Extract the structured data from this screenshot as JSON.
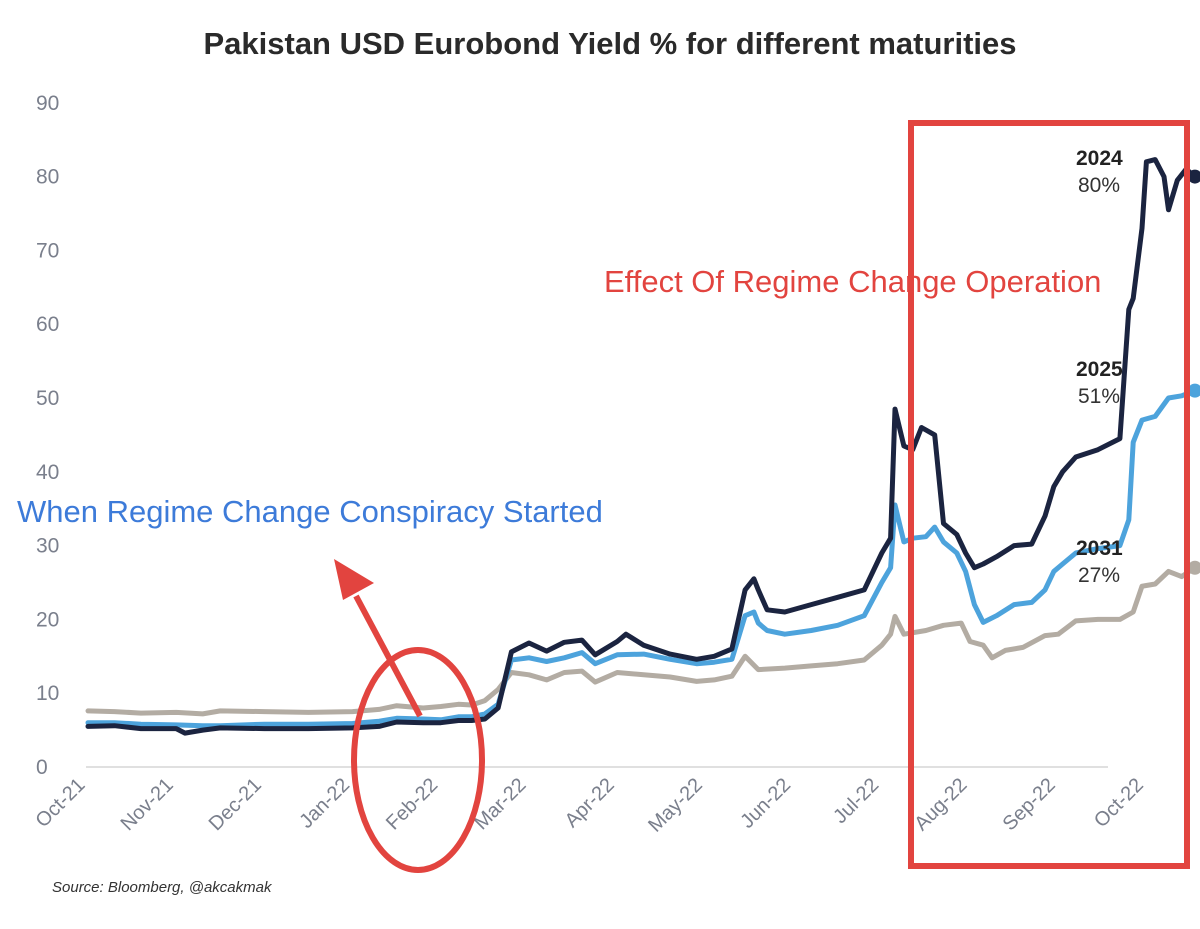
{
  "chart_data": {
    "type": "line",
    "title": "Pakistan USD Eurobond Yield % for different maturities",
    "source": "Source: Bloomberg, @akcakmak",
    "ylim": [
      0,
      90
    ],
    "yticks": [
      "0",
      "10",
      "20",
      "30",
      "40",
      "50",
      "60",
      "70",
      "80",
      "90"
    ],
    "xticks": [
      "Oct-21",
      "Nov-21",
      "Dec-21",
      "Jan-22",
      "Feb-22",
      "Mar-22",
      "Apr-22",
      "May-22",
      "Jun-22",
      "Jul-22",
      "Aug-22",
      "Sep-22",
      "Oct-22"
    ],
    "grid": false,
    "series": [
      {
        "name": "2031",
        "end_label": "27%",
        "color": "#b3aca3",
        "points": [
          [
            0,
            7.6
          ],
          [
            0.3,
            7.5
          ],
          [
            0.6,
            7.3
          ],
          [
            1.0,
            7.4
          ],
          [
            1.3,
            7.2
          ],
          [
            1.5,
            7.6
          ],
          [
            2.0,
            7.5
          ],
          [
            2.5,
            7.4
          ],
          [
            3.0,
            7.5
          ],
          [
            3.3,
            7.8
          ],
          [
            3.5,
            8.3
          ],
          [
            3.8,
            8.0
          ],
          [
            4.0,
            8.2
          ],
          [
            4.2,
            8.5
          ],
          [
            4.35,
            8.4
          ],
          [
            4.5,
            9.0
          ],
          [
            4.65,
            10.5
          ],
          [
            4.8,
            12.8
          ],
          [
            5.0,
            12.5
          ],
          [
            5.2,
            11.8
          ],
          [
            5.4,
            12.8
          ],
          [
            5.6,
            13.0
          ],
          [
            5.75,
            11.5
          ],
          [
            6.0,
            12.8
          ],
          [
            6.3,
            12.5
          ],
          [
            6.6,
            12.2
          ],
          [
            6.9,
            11.6
          ],
          [
            7.1,
            11.8
          ],
          [
            7.3,
            12.3
          ],
          [
            7.45,
            15.0
          ],
          [
            7.6,
            13.2
          ],
          [
            7.9,
            13.4
          ],
          [
            8.2,
            13.7
          ],
          [
            8.5,
            14.0
          ],
          [
            8.8,
            14.5
          ],
          [
            9.0,
            16.5
          ],
          [
            9.1,
            18.0
          ],
          [
            9.15,
            20.4
          ],
          [
            9.25,
            18.0
          ],
          [
            9.5,
            18.5
          ],
          [
            9.7,
            19.2
          ],
          [
            9.9,
            19.5
          ],
          [
            10.0,
            17.0
          ],
          [
            10.15,
            16.5
          ],
          [
            10.25,
            14.8
          ],
          [
            10.4,
            15.8
          ],
          [
            10.6,
            16.2
          ],
          [
            10.85,
            17.8
          ],
          [
            11.0,
            18.0
          ],
          [
            11.2,
            19.8
          ],
          [
            11.45,
            20.0
          ],
          [
            11.7,
            20.0
          ],
          [
            11.85,
            21.0
          ],
          [
            11.95,
            24.5
          ],
          [
            12.1,
            24.8
          ],
          [
            12.25,
            26.5
          ],
          [
            12.4,
            25.8
          ],
          [
            12.55,
            27.0
          ]
        ]
      },
      {
        "name": "2025",
        "end_label": "51%",
        "color": "#4da3dc",
        "points": [
          [
            0,
            6.0
          ],
          [
            0.3,
            6.0
          ],
          [
            0.6,
            5.8
          ],
          [
            1.0,
            5.7
          ],
          [
            1.3,
            5.6
          ],
          [
            1.5,
            5.6
          ],
          [
            2.0,
            5.8
          ],
          [
            2.5,
            5.8
          ],
          [
            3.0,
            5.9
          ],
          [
            3.3,
            6.2
          ],
          [
            3.5,
            6.6
          ],
          [
            3.8,
            6.5
          ],
          [
            4.0,
            6.4
          ],
          [
            4.2,
            6.8
          ],
          [
            4.35,
            6.8
          ],
          [
            4.5,
            7.2
          ],
          [
            4.65,
            8.5
          ],
          [
            4.8,
            14.5
          ],
          [
            5.0,
            14.8
          ],
          [
            5.2,
            14.3
          ],
          [
            5.4,
            14.8
          ],
          [
            5.6,
            15.5
          ],
          [
            5.75,
            14.0
          ],
          [
            6.0,
            15.2
          ],
          [
            6.3,
            15.3
          ],
          [
            6.6,
            14.6
          ],
          [
            6.9,
            14.0
          ],
          [
            7.1,
            14.2
          ],
          [
            7.3,
            14.6
          ],
          [
            7.45,
            20.5
          ],
          [
            7.55,
            21.0
          ],
          [
            7.6,
            19.5
          ],
          [
            7.7,
            18.5
          ],
          [
            7.9,
            18.0
          ],
          [
            8.2,
            18.5
          ],
          [
            8.5,
            19.2
          ],
          [
            8.8,
            20.5
          ],
          [
            9.0,
            25.0
          ],
          [
            9.1,
            27.0
          ],
          [
            9.15,
            35.5
          ],
          [
            9.25,
            30.5
          ],
          [
            9.35,
            31.0
          ],
          [
            9.5,
            31.2
          ],
          [
            9.6,
            32.5
          ],
          [
            9.7,
            30.5
          ],
          [
            9.85,
            29.0
          ],
          [
            9.95,
            26.5
          ],
          [
            10.05,
            22.0
          ],
          [
            10.15,
            19.6
          ],
          [
            10.3,
            20.5
          ],
          [
            10.5,
            22.0
          ],
          [
            10.7,
            22.3
          ],
          [
            10.85,
            24.0
          ],
          [
            10.95,
            26.5
          ],
          [
            11.05,
            27.5
          ],
          [
            11.2,
            29.0
          ],
          [
            11.45,
            29.6
          ],
          [
            11.7,
            30.0
          ],
          [
            11.8,
            33.5
          ],
          [
            11.85,
            44.0
          ],
          [
            11.95,
            47.0
          ],
          [
            12.1,
            47.5
          ],
          [
            12.25,
            50.0
          ],
          [
            12.4,
            50.3
          ],
          [
            12.55,
            51.0
          ]
        ]
      },
      {
        "name": "2024",
        "end_label": "80%",
        "color": "#1b2440",
        "points": [
          [
            0,
            5.5
          ],
          [
            0.3,
            5.6
          ],
          [
            0.6,
            5.2
          ],
          [
            1.0,
            5.2
          ],
          [
            1.1,
            4.6
          ],
          [
            1.3,
            5.0
          ],
          [
            1.5,
            5.3
          ],
          [
            2.0,
            5.2
          ],
          [
            2.5,
            5.2
          ],
          [
            3.0,
            5.3
          ],
          [
            3.3,
            5.5
          ],
          [
            3.5,
            6.1
          ],
          [
            3.8,
            6.0
          ],
          [
            4.0,
            6.0
          ],
          [
            4.2,
            6.3
          ],
          [
            4.35,
            6.3
          ],
          [
            4.5,
            6.5
          ],
          [
            4.65,
            8.0
          ],
          [
            4.8,
            15.6
          ],
          [
            5.0,
            16.8
          ],
          [
            5.2,
            15.7
          ],
          [
            5.4,
            16.9
          ],
          [
            5.6,
            17.2
          ],
          [
            5.75,
            15.2
          ],
          [
            6.0,
            17.0
          ],
          [
            6.1,
            18.0
          ],
          [
            6.3,
            16.5
          ],
          [
            6.6,
            15.3
          ],
          [
            6.9,
            14.6
          ],
          [
            7.1,
            15.0
          ],
          [
            7.3,
            16.0
          ],
          [
            7.45,
            24.0
          ],
          [
            7.55,
            25.5
          ],
          [
            7.6,
            24.0
          ],
          [
            7.7,
            21.3
          ],
          [
            7.9,
            21.0
          ],
          [
            8.2,
            22.0
          ],
          [
            8.5,
            23.0
          ],
          [
            8.8,
            24.0
          ],
          [
            9.0,
            29.0
          ],
          [
            9.1,
            31.0
          ],
          [
            9.15,
            48.5
          ],
          [
            9.25,
            43.5
          ],
          [
            9.35,
            43.0
          ],
          [
            9.45,
            46.0
          ],
          [
            9.6,
            45.0
          ],
          [
            9.7,
            33.0
          ],
          [
            9.85,
            31.5
          ],
          [
            9.95,
            29.0
          ],
          [
            10.05,
            27.0
          ],
          [
            10.15,
            27.5
          ],
          [
            10.3,
            28.5
          ],
          [
            10.5,
            30.0
          ],
          [
            10.7,
            30.2
          ],
          [
            10.85,
            34.0
          ],
          [
            10.95,
            38.0
          ],
          [
            11.05,
            40.0
          ],
          [
            11.2,
            42.0
          ],
          [
            11.45,
            43.0
          ],
          [
            11.7,
            44.5
          ],
          [
            11.8,
            62.0
          ],
          [
            11.85,
            63.5
          ],
          [
            11.95,
            73.0
          ],
          [
            12.0,
            82.0
          ],
          [
            12.1,
            82.3
          ],
          [
            12.2,
            80.0
          ],
          [
            12.25,
            75.5
          ],
          [
            12.35,
            79.5
          ],
          [
            12.45,
            81.0
          ],
          [
            12.55,
            80.0
          ]
        ]
      }
    ]
  },
  "annotations": {
    "effect_text": "Effect Of Regime Change Operation",
    "conspiracy_text": "When Regime Change Conspiracy Started",
    "colors": {
      "red": "#e2443f",
      "blue": "#3d7bd9"
    }
  }
}
